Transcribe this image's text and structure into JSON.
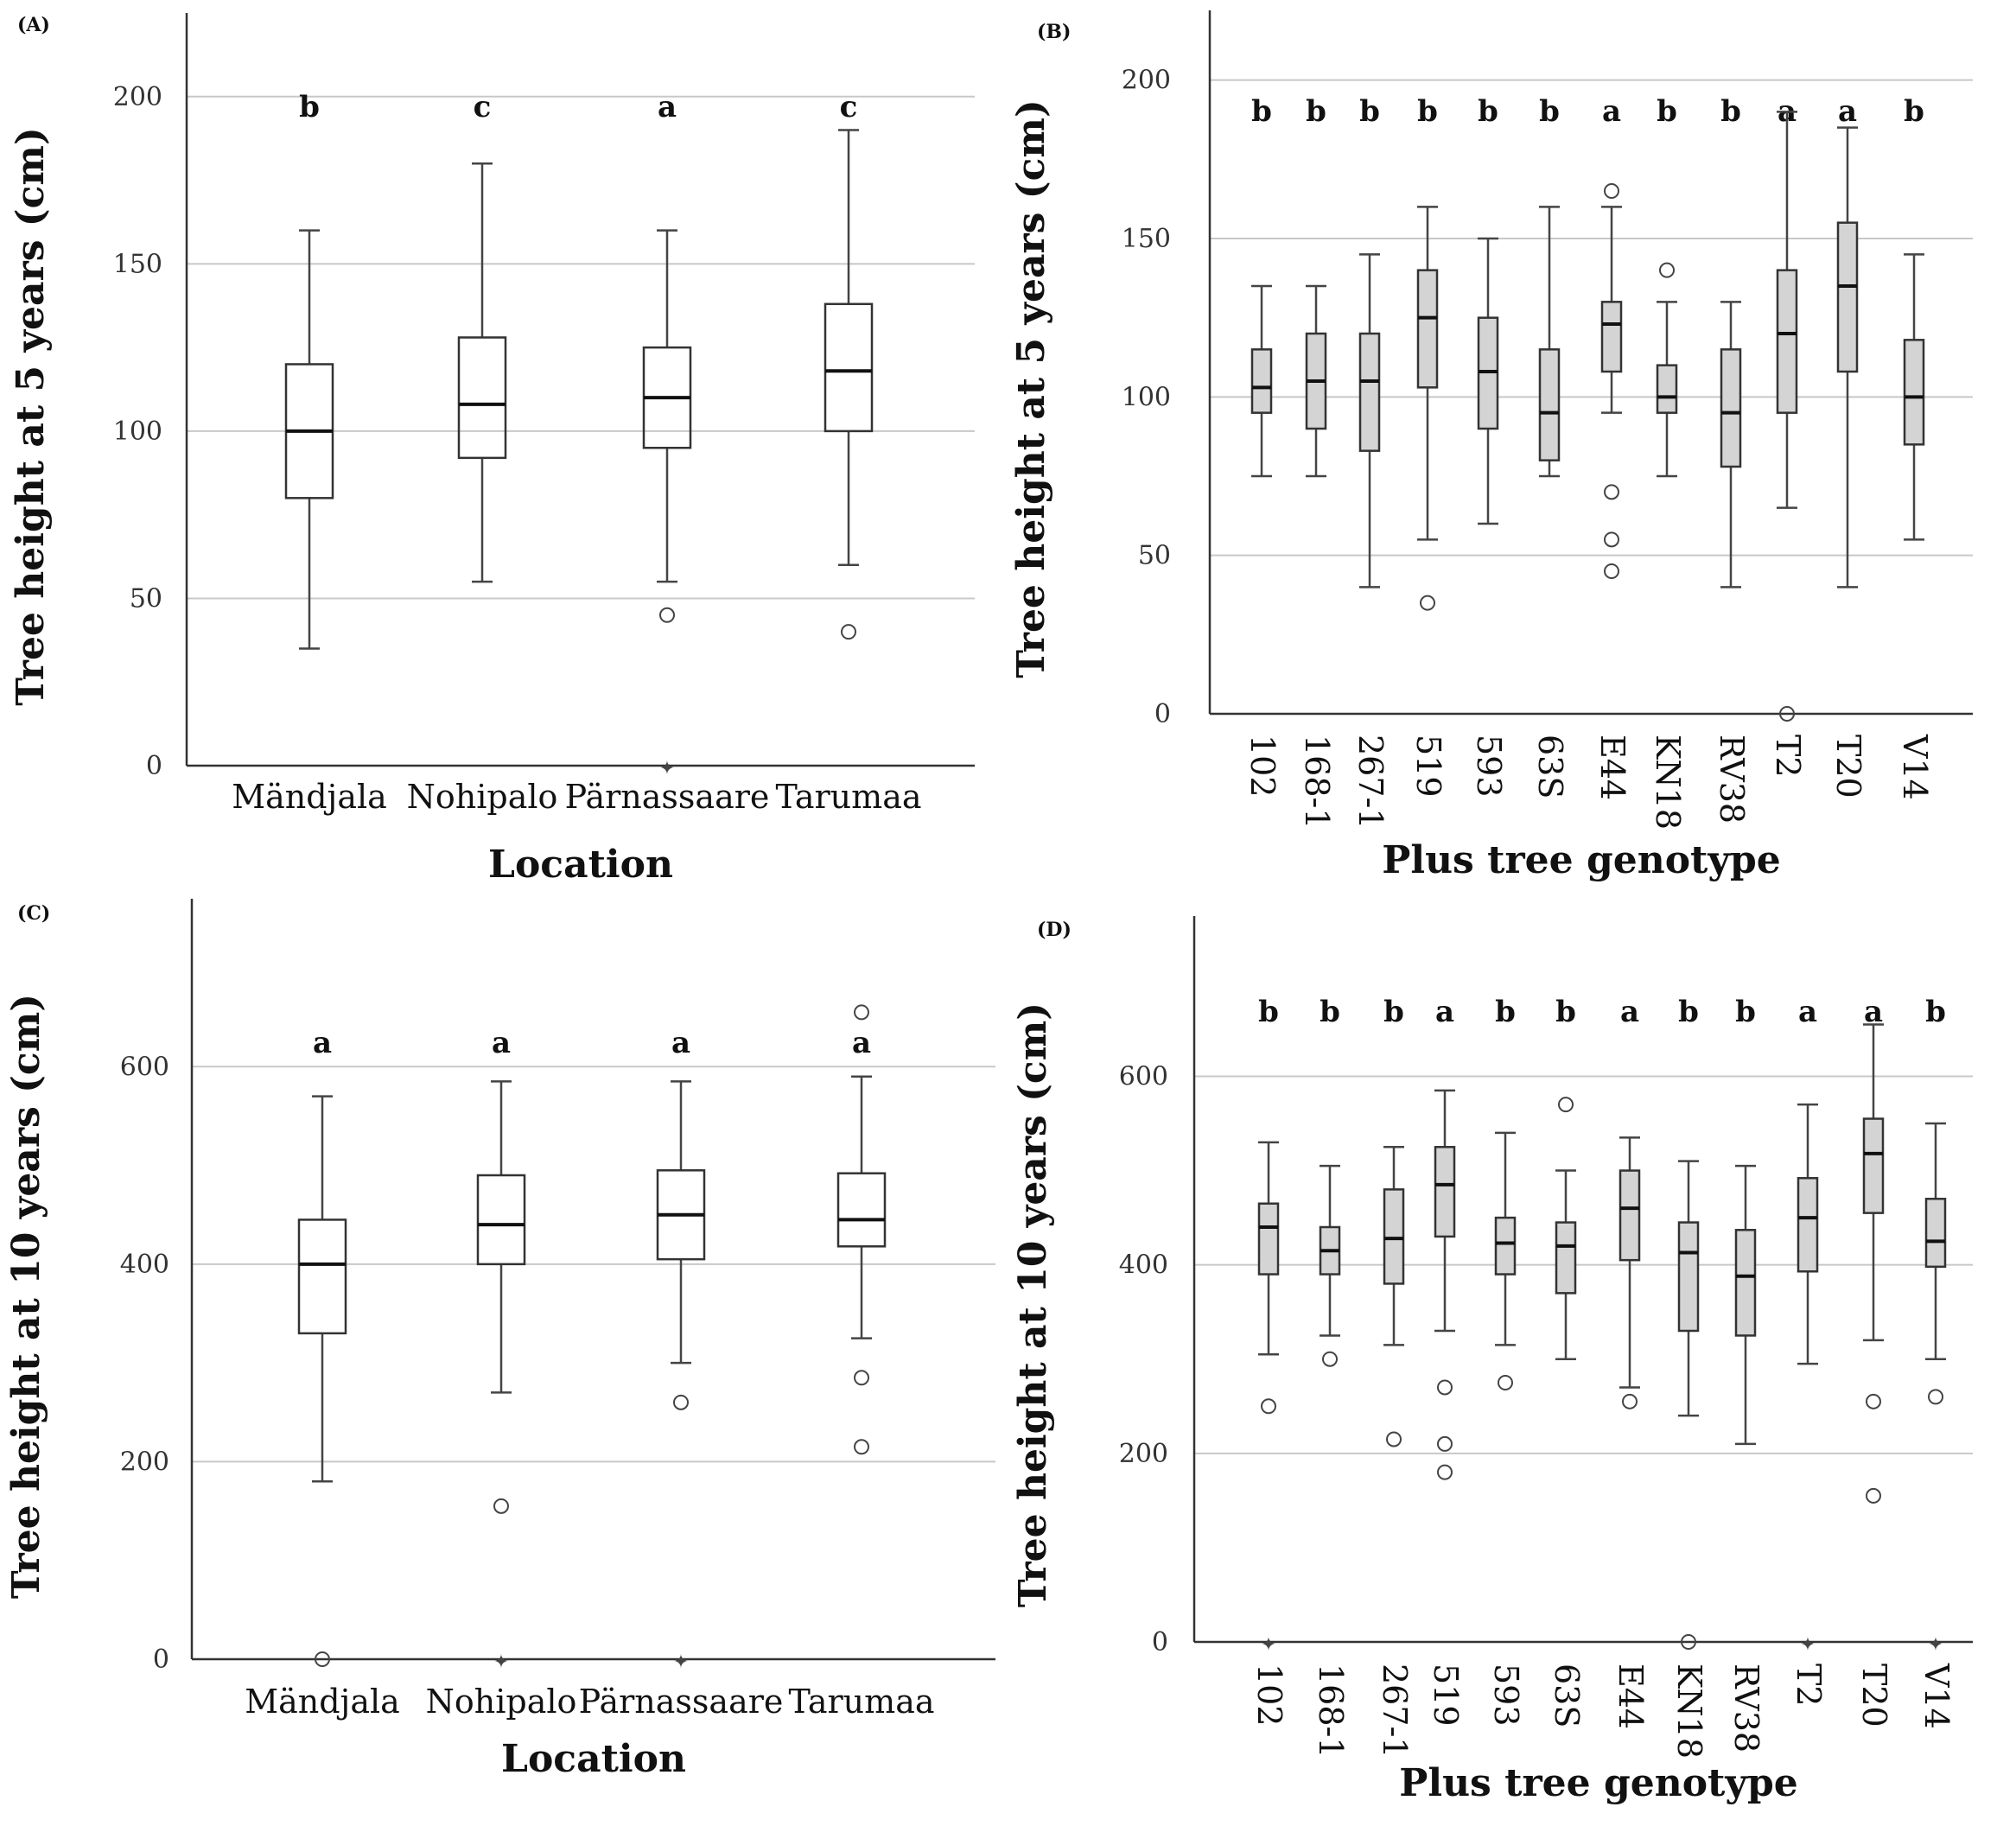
{
  "chart_data": [
    {
      "id": "A",
      "panel_label": "(A)",
      "type": "boxplot",
      "xlabel": "Location",
      "ylabel": "Tree height at 5 years (cm)",
      "ylim": [
        0,
        225
      ],
      "yticks": [
        0,
        50,
        100,
        150,
        200
      ],
      "gridlines": [
        50,
        100,
        150,
        200
      ],
      "categories": [
        "Mändjala",
        "Nohipalo",
        "Pärnassaare",
        "Tarumaa"
      ],
      "letters": [
        "b",
        "c",
        "a",
        "c"
      ],
      "boxes": [
        {
          "min": 35,
          "q1": 80,
          "median": 100,
          "q3": 120,
          "max": 160,
          "outliers": []
        },
        {
          "min": 55,
          "q1": 92,
          "median": 108,
          "q3": 128,
          "max": 180,
          "outliers": []
        },
        {
          "min": 55,
          "q1": 95,
          "median": 110,
          "q3": 125,
          "max": 160,
          "outliers": [
            45
          ],
          "extremes": [
            0
          ]
        },
        {
          "min": 60,
          "q1": 100,
          "median": 118,
          "q3": 138,
          "max": 190,
          "outliers": [
            40
          ]
        }
      ]
    },
    {
      "id": "B",
      "panel_label": "(B)",
      "type": "boxplot",
      "xlabel": "Plus tree genotype",
      "ylabel": "Tree height at 5 years (cm)",
      "ylim": [
        0,
        222
      ],
      "yticks": [
        0,
        50,
        100,
        150,
        200
      ],
      "gridlines": [
        50,
        100,
        150,
        200
      ],
      "categories": [
        "102",
        "168-1",
        "267-1",
        "519",
        "593",
        "63S",
        "E44",
        "KN18",
        "RV38",
        "T2",
        "T20",
        "V14"
      ],
      "letters": [
        "b",
        "b",
        "b",
        "b",
        "b",
        "b",
        "a",
        "b",
        "b",
        "a",
        "a",
        "b"
      ],
      "boxes": [
        {
          "min": 75,
          "q1": 95,
          "median": 103,
          "q3": 115,
          "max": 135,
          "outliers": []
        },
        {
          "min": 75,
          "q1": 90,
          "median": 105,
          "q3": 120,
          "max": 135,
          "outliers": []
        },
        {
          "min": 40,
          "q1": 83,
          "median": 105,
          "q3": 120,
          "max": 145,
          "outliers": []
        },
        {
          "min": 55,
          "q1": 103,
          "median": 125,
          "q3": 140,
          "max": 160,
          "outliers": [
            35
          ]
        },
        {
          "min": 60,
          "q1": 90,
          "median": 108,
          "q3": 125,
          "max": 150,
          "outliers": []
        },
        {
          "min": 75,
          "q1": 80,
          "median": 95,
          "q3": 115,
          "max": 160,
          "outliers": []
        },
        {
          "min": 95,
          "q1": 108,
          "median": 123,
          "q3": 130,
          "max": 160,
          "outliers": [
            165,
            70,
            55,
            45
          ]
        },
        {
          "min": 75,
          "q1": 95,
          "median": 100,
          "q3": 110,
          "max": 130,
          "outliers": [
            140
          ]
        },
        {
          "min": 40,
          "q1": 78,
          "median": 95,
          "q3": 115,
          "max": 130,
          "outliers": []
        },
        {
          "min": 65,
          "q1": 95,
          "median": 120,
          "q3": 140,
          "max": 190,
          "outliers": [
            0
          ]
        },
        {
          "min": 40,
          "q1": 108,
          "median": 135,
          "q3": 155,
          "max": 185,
          "outliers": []
        },
        {
          "min": 55,
          "q1": 85,
          "median": 100,
          "q3": 118,
          "max": 145,
          "outliers": []
        }
      ]
    },
    {
      "id": "C",
      "panel_label": "(C)",
      "type": "boxplot",
      "xlabel": "Location",
      "ylabel": "Tree height at 10 years (cm)",
      "ylim": [
        0,
        770
      ],
      "yticks": [
        0,
        200,
        400,
        600
      ],
      "gridlines": [
        200,
        400,
        600
      ],
      "categories": [
        "Mändjala",
        "Nohipalo",
        "Pärnassaare",
        "Tarumaa"
      ],
      "letters": [
        "a",
        "a",
        "a",
        "a"
      ],
      "boxes": [
        {
          "min": 180,
          "q1": 330,
          "median": 400,
          "q3": 445,
          "max": 570,
          "outliers": [
            0
          ]
        },
        {
          "min": 270,
          "q1": 400,
          "median": 440,
          "q3": 490,
          "max": 585,
          "outliers": [
            155
          ],
          "extremes": [
            0
          ]
        },
        {
          "min": 300,
          "q1": 405,
          "median": 450,
          "q3": 495,
          "max": 585,
          "outliers": [
            260
          ],
          "extremes": [
            0
          ]
        },
        {
          "min": 325,
          "q1": 418,
          "median": 445,
          "q3": 492,
          "max": 590,
          "outliers": [
            655,
            285,
            215
          ]
        }
      ]
    },
    {
      "id": "D",
      "panel_label": "(D)",
      "type": "boxplot",
      "xlabel": "Plus tree genotype",
      "ylabel": "Tree height at 10 years (cm)",
      "ylim": [
        0,
        770
      ],
      "yticks": [
        0,
        200,
        400,
        600
      ],
      "gridlines": [
        200,
        400,
        600
      ],
      "categories": [
        "102",
        "168-1",
        "267-1",
        "519",
        "593",
        "63S",
        "E44",
        "KN18",
        "RV38",
        "T2",
        "T20",
        "V14"
      ],
      "letters": [
        "b",
        "b",
        "b",
        "a",
        "b",
        "b",
        "a",
        "b",
        "b",
        "a",
        "a",
        "b"
      ],
      "boxes": [
        {
          "min": 305,
          "q1": 390,
          "median": 440,
          "q3": 465,
          "max": 530,
          "outliers": [
            250
          ],
          "extremes": [
            0
          ]
        },
        {
          "min": 325,
          "q1": 390,
          "median": 415,
          "q3": 440,
          "max": 505,
          "outliers": [
            300
          ]
        },
        {
          "min": 315,
          "q1": 380,
          "median": 428,
          "q3": 480,
          "max": 525,
          "outliers": [
            215
          ]
        },
        {
          "min": 330,
          "q1": 430,
          "median": 485,
          "q3": 525,
          "max": 585,
          "outliers": [
            270,
            210,
            180
          ]
        },
        {
          "min": 315,
          "q1": 390,
          "median": 423,
          "q3": 450,
          "max": 540,
          "outliers": [
            275
          ]
        },
        {
          "min": 300,
          "q1": 370,
          "median": 420,
          "q3": 445,
          "max": 500,
          "outliers": [
            570
          ]
        },
        {
          "min": 270,
          "q1": 405,
          "median": 460,
          "q3": 500,
          "max": 535,
          "outliers": [
            255
          ]
        },
        {
          "min": 240,
          "q1": 330,
          "median": 413,
          "q3": 445,
          "max": 510,
          "outliers": [
            0
          ]
        },
        {
          "min": 210,
          "q1": 325,
          "median": 388,
          "q3": 437,
          "max": 505,
          "outliers": []
        },
        {
          "min": 295,
          "q1": 393,
          "median": 450,
          "q3": 492,
          "max": 570,
          "outliers": [],
          "extremes": [
            0
          ]
        },
        {
          "min": 320,
          "q1": 455,
          "median": 518,
          "q3": 555,
          "max": 655,
          "outliers": [
            255,
            155
          ]
        },
        {
          "min": 300,
          "q1": 398,
          "median": 425,
          "q3": 470,
          "max": 550,
          "outliers": [
            260
          ],
          "extremes": [
            0
          ]
        }
      ]
    }
  ]
}
